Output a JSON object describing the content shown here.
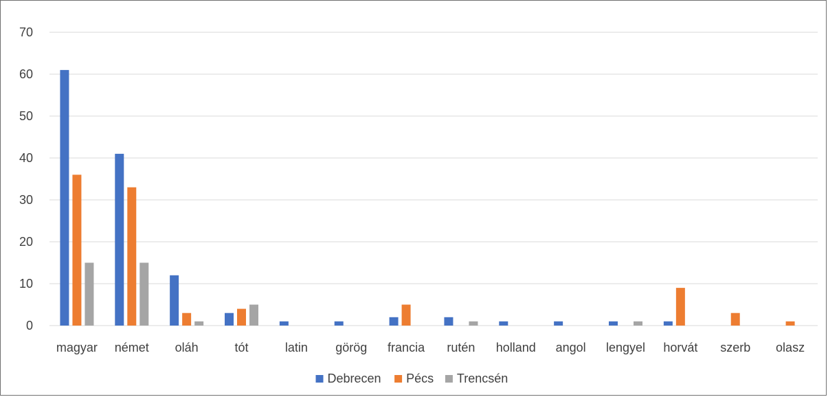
{
  "chart_data": {
    "type": "bar",
    "title": "",
    "xlabel": "",
    "ylabel": "",
    "ylim": [
      0,
      70
    ],
    "yticks": [
      0,
      10,
      20,
      30,
      40,
      50,
      60,
      70
    ],
    "grid": true,
    "legend_position": "bottom",
    "categories": [
      "magyar",
      "német",
      "oláh",
      "tót",
      "latin",
      "görög",
      "francia",
      "rutén",
      "holland",
      "angol",
      "lengyel",
      "horvát",
      "szerb",
      "olasz"
    ],
    "series": [
      {
        "name": "Debrecen",
        "color": "#4472c4",
        "values": [
          61,
          41,
          12,
          3,
          1,
          1,
          2,
          2,
          1,
          1,
          1,
          1,
          0,
          0
        ]
      },
      {
        "name": "Pécs",
        "color": "#ed7d31",
        "values": [
          36,
          33,
          3,
          4,
          0,
          0,
          5,
          0,
          0,
          0,
          0,
          9,
          3,
          1
        ]
      },
      {
        "name": "Trencsén",
        "color": "#a5a5a5",
        "values": [
          15,
          15,
          1,
          5,
          0,
          0,
          0,
          1,
          0,
          0,
          1,
          0,
          0,
          0
        ]
      }
    ]
  }
}
